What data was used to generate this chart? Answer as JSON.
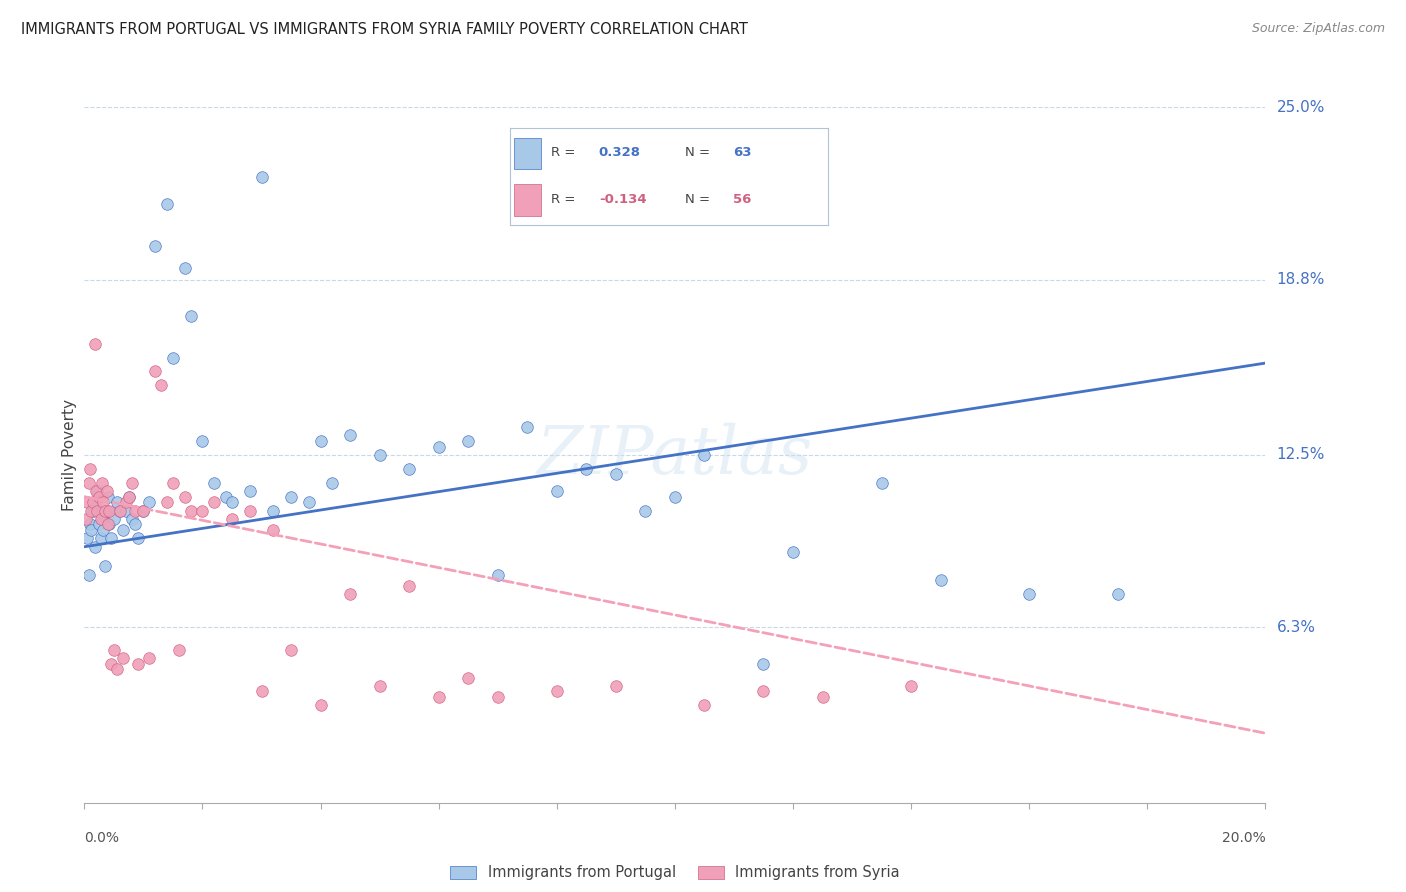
{
  "title": "IMMIGRANTS FROM PORTUGAL VS IMMIGRANTS FROM SYRIA FAMILY POVERTY CORRELATION CHART",
  "source": "Source: ZipAtlas.com",
  "ylabel": "Family Poverty",
  "yticks": [
    6.3,
    12.5,
    18.8,
    25.0
  ],
  "xlim": [
    0.0,
    20.0
  ],
  "ylim": [
    0.0,
    25.0
  ],
  "r_portugal": 0.328,
  "n_portugal": 63,
  "r_syria": -0.134,
  "n_syria": 56,
  "color_portugal": "#a8c8e8",
  "color_syria": "#f0a0b8",
  "trendline_portugal_color": "#4472c4",
  "trendline_syria_color": "#f4a0b8",
  "background_color": "#ffffff",
  "portugal_trendline_x0": 0.0,
  "portugal_trendline_y0": 9.2,
  "portugal_trendline_x1": 20.0,
  "portugal_trendline_y1": 15.8,
  "syria_trendline_x0": 0.0,
  "syria_trendline_y0": 11.0,
  "syria_trendline_x1": 20.0,
  "syria_trendline_y1": 2.5,
  "portugal_x": [
    0.05,
    0.08,
    0.1,
    0.12,
    0.15,
    0.18,
    0.2,
    0.22,
    0.25,
    0.28,
    0.3,
    0.32,
    0.35,
    0.38,
    0.4,
    0.42,
    0.45,
    0.5,
    0.55,
    0.6,
    0.65,
    0.7,
    0.75,
    0.8,
    0.85,
    0.9,
    1.0,
    1.1,
    1.2,
    1.4,
    1.5,
    1.7,
    1.8,
    2.0,
    2.2,
    2.4,
    2.5,
    2.8,
    3.0,
    3.2,
    3.5,
    3.8,
    4.0,
    4.2,
    4.5,
    5.0,
    5.5,
    6.0,
    6.5,
    7.0,
    7.5,
    8.0,
    8.5,
    9.0,
    9.5,
    10.0,
    10.5,
    11.5,
    12.0,
    13.5,
    14.5,
    16.0,
    17.5
  ],
  "portugal_y": [
    9.5,
    8.2,
    10.0,
    9.8,
    10.5,
    9.2,
    10.8,
    11.2,
    10.0,
    9.5,
    10.2,
    9.8,
    8.5,
    10.5,
    11.0,
    10.0,
    9.5,
    10.2,
    10.8,
    10.5,
    9.8,
    10.5,
    11.0,
    10.2,
    10.0,
    9.5,
    10.5,
    10.8,
    20.0,
    21.5,
    16.0,
    19.2,
    17.5,
    13.0,
    11.5,
    11.0,
    10.8,
    11.2,
    22.5,
    10.5,
    11.0,
    10.8,
    13.0,
    11.5,
    13.2,
    12.5,
    12.0,
    12.8,
    13.0,
    8.2,
    13.5,
    11.2,
    12.0,
    11.8,
    10.5,
    11.0,
    12.5,
    5.0,
    9.0,
    11.5,
    8.0,
    7.5,
    7.5
  ],
  "syria_x": [
    0.03,
    0.05,
    0.08,
    0.1,
    0.12,
    0.15,
    0.18,
    0.2,
    0.22,
    0.25,
    0.28,
    0.3,
    0.32,
    0.35,
    0.38,
    0.4,
    0.42,
    0.45,
    0.5,
    0.55,
    0.6,
    0.65,
    0.7,
    0.75,
    0.8,
    0.85,
    0.9,
    1.0,
    1.1,
    1.2,
    1.3,
    1.4,
    1.5,
    1.6,
    1.7,
    1.8,
    2.0,
    2.2,
    2.5,
    2.8,
    3.0,
    3.2,
    3.5,
    4.0,
    4.5,
    5.0,
    5.5,
    6.0,
    6.5,
    7.0,
    8.0,
    9.0,
    10.5,
    11.5,
    12.5,
    14.0
  ],
  "syria_y": [
    10.2,
    10.8,
    11.5,
    12.0,
    10.5,
    10.8,
    16.5,
    11.2,
    10.5,
    11.0,
    10.2,
    11.5,
    10.8,
    10.5,
    11.2,
    10.0,
    10.5,
    5.0,
    5.5,
    4.8,
    10.5,
    5.2,
    10.8,
    11.0,
    11.5,
    10.5,
    5.0,
    10.5,
    5.2,
    15.5,
    15.0,
    10.8,
    11.5,
    5.5,
    11.0,
    10.5,
    10.5,
    10.8,
    10.2,
    10.5,
    4.0,
    9.8,
    5.5,
    3.5,
    7.5,
    4.2,
    7.8,
    3.8,
    4.5,
    3.8,
    4.0,
    4.2,
    3.5,
    4.0,
    3.8,
    4.2
  ]
}
